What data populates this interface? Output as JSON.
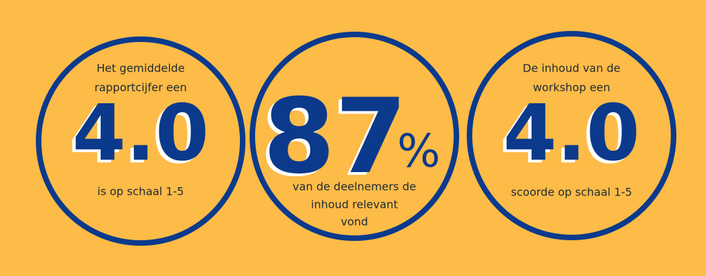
{
  "stats": [
    {
      "top": [
        "Het gemiddelde",
        "rapportcijfer een"
      ],
      "value": "4.0",
      "bottom": [
        "is op schaal 1-5"
      ]
    },
    {
      "top": [],
      "value": "87",
      "suffix": "%",
      "bottom": [
        "van de deelnemers de",
        "inhoud relevant",
        "vond"
      ]
    },
    {
      "top": [
        "De inhoud van de",
        "workshop een"
      ],
      "value": "4.0",
      "bottom": [
        "scoorde op schaal 1-5"
      ]
    }
  ]
}
